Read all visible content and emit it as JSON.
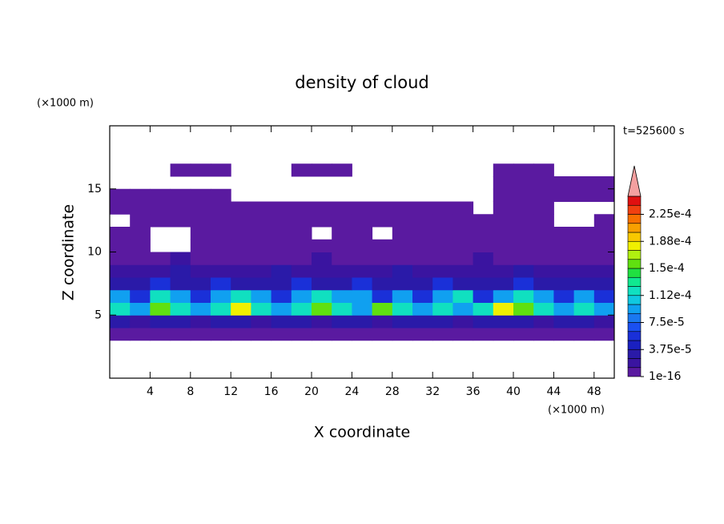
{
  "chart_data": {
    "type": "contour",
    "title": "density of cloud",
    "annotation": "t=525600 s",
    "x_label": "X coordinate",
    "y_label": "Z coordinate",
    "x_unit": "(×1000 m)",
    "y_unit": "(×1000 m)",
    "xlim": [
      0,
      50
    ],
    "ylim": [
      0,
      20
    ],
    "xticks": [
      4,
      8,
      12,
      16,
      20,
      24,
      28,
      32,
      36,
      40,
      44,
      48
    ],
    "yticks": [
      5,
      10,
      15
    ],
    "x": [
      1,
      3,
      5,
      7,
      9,
      11,
      13,
      15,
      17,
      19,
      21,
      23,
      25,
      27,
      29,
      31,
      33,
      35,
      37,
      39,
      41,
      43,
      45,
      47,
      49
    ],
    "y": [
      3.5,
      4.5,
      5.5,
      6.5,
      7.5,
      8.5,
      9.5,
      10.5,
      11.5,
      12.5,
      13.5,
      14.5,
      15.5,
      16.5
    ],
    "z": [
      [
        5e-06,
        5e-06,
        5e-06,
        5e-06,
        5e-06,
        5e-06,
        5e-06,
        5e-06,
        5e-06,
        5e-06,
        5e-06,
        5e-06,
        5e-06,
        5e-06,
        5e-06,
        5e-06,
        5e-06,
        5e-06,
        5e-06,
        5e-06,
        5e-06,
        5e-06,
        5e-06,
        5e-06,
        5e-06
      ],
      [
        3e-05,
        1.5e-05,
        3e-05,
        3e-05,
        1.5e-05,
        3e-05,
        3e-05,
        1.5e-05,
        3e-05,
        3e-05,
        1.5e-05,
        3e-05,
        3e-05,
        1.5e-05,
        3e-05,
        3e-05,
        3e-05,
        1.5e-05,
        3e-05,
        3e-05,
        3e-05,
        1.5e-05,
        3e-05,
        3e-05,
        1.5e-05
      ],
      [
        0.00012,
        9e-05,
        0.00015,
        0.00012,
        9e-05,
        0.00012,
        0.00018,
        0.00012,
        9e-05,
        0.00012,
        0.00015,
        0.00012,
        9e-05,
        0.00015,
        0.00012,
        9e-05,
        0.00012,
        9e-05,
        0.00012,
        0.00018,
        0.00015,
        0.00012,
        9e-05,
        0.00012,
        9e-05
      ],
      [
        9e-05,
        6e-05,
        0.00012,
        9e-05,
        6e-05,
        9e-05,
        0.00012,
        9e-05,
        6e-05,
        9e-05,
        0.00012,
        9e-05,
        9e-05,
        6e-05,
        9e-05,
        6e-05,
        9e-05,
        0.00012,
        6e-05,
        9e-05,
        0.00012,
        9e-05,
        6e-05,
        9e-05,
        6e-05
      ],
      [
        3e-05,
        3e-05,
        6e-05,
        3e-05,
        3e-05,
        6e-05,
        3e-05,
        3e-05,
        3e-05,
        6e-05,
        3e-05,
        3e-05,
        6e-05,
        3e-05,
        3e-05,
        3e-05,
        6e-05,
        3e-05,
        3e-05,
        3e-05,
        6e-05,
        3e-05,
        3e-05,
        3e-05,
        3e-05
      ],
      [
        1.5e-05,
        1.5e-05,
        1.5e-05,
        3e-05,
        1.5e-05,
        1.5e-05,
        1.5e-05,
        1.5e-05,
        3e-05,
        1.5e-05,
        1.5e-05,
        1.5e-05,
        1.5e-05,
        1.5e-05,
        3e-05,
        1.5e-05,
        1.5e-05,
        1.5e-05,
        1.5e-05,
        1.5e-05,
        3e-05,
        1.5e-05,
        1.5e-05,
        1.5e-05,
        1.5e-05
      ],
      [
        5e-06,
        5e-06,
        5e-06,
        1.5e-05,
        5e-06,
        5e-06,
        5e-06,
        5e-06,
        5e-06,
        5e-06,
        1.5e-05,
        5e-06,
        5e-06,
        5e-06,
        5e-06,
        5e-06,
        5e-06,
        5e-06,
        1.5e-05,
        5e-06,
        5e-06,
        5e-06,
        5e-06,
        5e-06,
        5e-06
      ],
      [
        5e-06,
        5e-06,
        null,
        null,
        5e-06,
        5e-06,
        5e-06,
        5e-06,
        5e-06,
        5e-06,
        5e-06,
        5e-06,
        5e-06,
        5e-06,
        5e-06,
        5e-06,
        5e-06,
        5e-06,
        5e-06,
        5e-06,
        5e-06,
        5e-06,
        5e-06,
        5e-06,
        5e-06
      ],
      [
        5e-06,
        5e-06,
        null,
        null,
        5e-06,
        5e-06,
        5e-06,
        5e-06,
        5e-06,
        5e-06,
        null,
        5e-06,
        5e-06,
        null,
        5e-06,
        5e-06,
        5e-06,
        5e-06,
        5e-06,
        5e-06,
        5e-06,
        5e-06,
        5e-06,
        5e-06,
        5e-06
      ],
      [
        null,
        5e-06,
        5e-06,
        5e-06,
        5e-06,
        5e-06,
        5e-06,
        5e-06,
        5e-06,
        5e-06,
        5e-06,
        5e-06,
        5e-06,
        5e-06,
        5e-06,
        5e-06,
        5e-06,
        5e-06,
        5e-06,
        5e-06,
        5e-06,
        5e-06,
        null,
        null,
        5e-06
      ],
      [
        5e-06,
        5e-06,
        5e-06,
        5e-06,
        5e-06,
        5e-06,
        5e-06,
        5e-06,
        5e-06,
        5e-06,
        5e-06,
        5e-06,
        5e-06,
        5e-06,
        5e-06,
        5e-06,
        5e-06,
        5e-06,
        null,
        5e-06,
        5e-06,
        5e-06,
        null,
        null,
        null
      ],
      [
        5e-06,
        5e-06,
        5e-06,
        5e-06,
        5e-06,
        5e-06,
        null,
        null,
        null,
        null,
        null,
        null,
        null,
        null,
        null,
        null,
        null,
        null,
        null,
        5e-06,
        5e-06,
        5e-06,
        5e-06,
        5e-06,
        5e-06
      ],
      [
        null,
        null,
        null,
        null,
        null,
        null,
        null,
        null,
        null,
        null,
        null,
        null,
        null,
        null,
        null,
        null,
        null,
        null,
        null,
        5e-06,
        5e-06,
        5e-06,
        5e-06,
        5e-06,
        5e-06
      ],
      [
        null,
        null,
        null,
        5e-06,
        5e-06,
        5e-06,
        null,
        null,
        null,
        5e-06,
        5e-06,
        5e-06,
        null,
        null,
        null,
        null,
        null,
        null,
        null,
        5e-06,
        5e-06,
        5e-06,
        null,
        null,
        null
      ]
    ],
    "levels": [
      1e-16,
      1.25e-05,
      2.5e-05,
      3.75e-05,
      5e-05,
      6.25e-05,
      7.5e-05,
      8.75e-05,
      0.0001,
      0.0001125,
      0.000125,
      0.0001375,
      0.00015,
      0.0001625,
      0.000175,
      0.0001875,
      0.0002,
      0.0002125,
      0.000225,
      0.0002375,
      0.00025
    ],
    "colors": [
      "#5a1aa0",
      "#3a14a0",
      "#2a1aa8",
      "#1a20c0",
      "#1a30d8",
      "#1a50f0",
      "#1a78f0",
      "#10a0f0",
      "#10c8e0",
      "#10e0c0",
      "#10e890",
      "#20e040",
      "#60e010",
      "#b0f010",
      "#f0f000",
      "#f8c800",
      "#f8a000",
      "#f87000",
      "#f04010",
      "#e01010"
    ],
    "overflow_color": "#f4a0a0",
    "colorbar_ticks": [
      1e-16,
      {
        "value": 3.75e-05,
        "label": "3.75e-5"
      },
      {
        "value": 7.5e-05,
        "label": "7.5e-5"
      },
      {
        "value": 0.0001125,
        "label": "1.12e-4"
      },
      {
        "value": 0.00015,
        "label": "1.5e-4"
      },
      {
        "value": 0.0001875,
        "label": "1.88e-4"
      },
      {
        "value": 0.000225,
        "label": "2.25e-4"
      }
    ]
  }
}
